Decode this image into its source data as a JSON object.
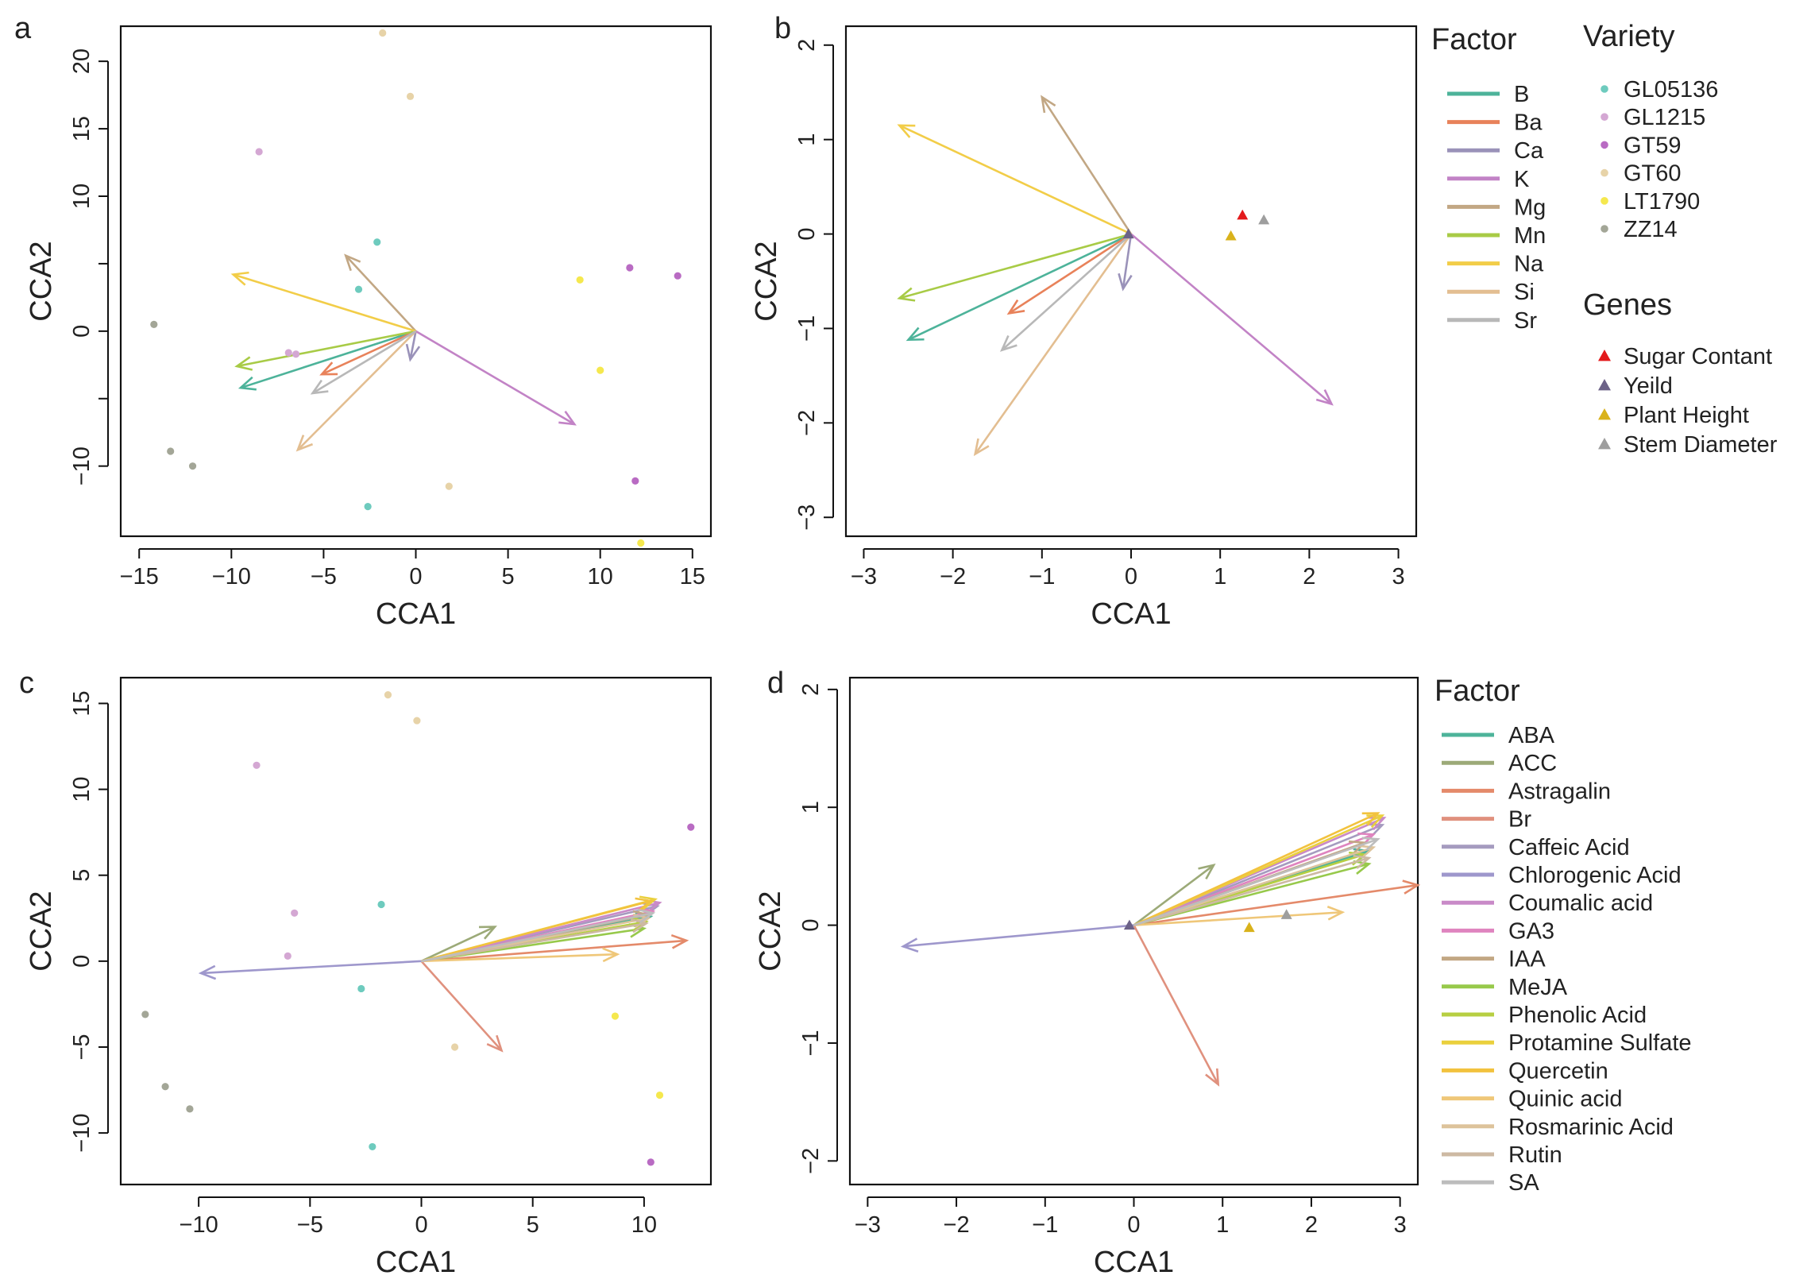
{
  "figure": {
    "panel_labels": [
      "a",
      "b",
      "c",
      "d"
    ]
  },
  "colors": {
    "B": "#4DB39A",
    "Ba": "#E8825A",
    "Ca": "#9A92B9",
    "K": "#C283C6",
    "Mg": "#C2A784",
    "Mn": "#A8CB46",
    "Na": "#F2CD48",
    "Si": "#E3BE91",
    "Sr": "#B8B8B8",
    "GL05136": "#6ECBBE",
    "GL1215": "#D4A7D3",
    "GT59": "#B96BC3",
    "GT60": "#E7D3A8",
    "LT1790": "#F5E84E",
    "ZZ14": "#A3A697",
    "Sugar Contant": "#E31A1C",
    "Yeild": "#6C6288",
    "Plant Height": "#D9B21B",
    "Stem Diameter": "#9E9E9E",
    "ABA": "#4DB39A",
    "ACC": "#9CAA78",
    "Astragalin": "#E48A6A",
    "Br": "#E0917E",
    "Caffeic Acid": "#A59BBF",
    "Chlorogenic Acid": "#9E97CC",
    "Coumalic acid": "#C98AC8",
    "GA3": "#DF84BF",
    "IAA": "#C2A784",
    "MeJA": "#97C94B",
    "Phenolic Acid": "#B7CF42",
    "Protamine Sulfate": "#EAD03D",
    "Quercetin": "#F2C23E",
    "Quinic acid": "#EFC779",
    "Rosmarinic Acid": "#DDC39B",
    "Rutin": "#CDB9A3",
    "SA": "#BDBDBD"
  },
  "chart_data": [
    {
      "id": "a",
      "type": "scatter",
      "xlabel": "CCA1",
      "ylabel": "CCA2",
      "xlim": [
        -16,
        16
      ],
      "ylim": [
        -15.2,
        22.6
      ],
      "xticks": [
        -15,
        -10,
        -5,
        0,
        5,
        10,
        15
      ],
      "yticks": [
        -10,
        0,
        10,
        20
      ],
      "yticks_major": [
        20,
        15,
        10,
        0,
        -10
      ],
      "points": [
        {
          "variety": "ZZ14",
          "x": -14.2,
          "y": 0.5
        },
        {
          "variety": "ZZ14",
          "x": -13.3,
          "y": -8.9
        },
        {
          "variety": "ZZ14",
          "x": -12.1,
          "y": -10.0
        },
        {
          "variety": "GL1215",
          "x": -8.5,
          "y": 13.3
        },
        {
          "variety": "GL1215",
          "x": -6.9,
          "y": -1.6
        },
        {
          "variety": "GL1215",
          "x": -6.5,
          "y": -1.7
        },
        {
          "variety": "GL05136",
          "x": -3.1,
          "y": 3.1
        },
        {
          "variety": "GL05136",
          "x": -2.1,
          "y": 6.6
        },
        {
          "variety": "GL05136",
          "x": -2.6,
          "y": -13.0
        },
        {
          "variety": "GT60",
          "x": -1.8,
          "y": 22.1
        },
        {
          "variety": "GT60",
          "x": -0.3,
          "y": 17.4
        },
        {
          "variety": "GT60",
          "x": 1.8,
          "y": -11.5
        },
        {
          "variety": "LT1790",
          "x": 8.9,
          "y": 3.8
        },
        {
          "variety": "LT1790",
          "x": 10.0,
          "y": -2.9
        },
        {
          "variety": "LT1790",
          "x": 12.2,
          "y": -15.7
        },
        {
          "variety": "GT59",
          "x": 11.6,
          "y": 4.7
        },
        {
          "variety": "GT59",
          "x": 14.2,
          "y": 4.1
        },
        {
          "variety": "GT59",
          "x": 11.9,
          "y": -11.1
        }
      ],
      "arrows": [
        {
          "factor": "B",
          "x": -9.5,
          "y": -4.2
        },
        {
          "factor": "Ba",
          "x": -5.1,
          "y": -3.2
        },
        {
          "factor": "Ca",
          "x": -0.3,
          "y": -2.1
        },
        {
          "factor": "K",
          "x": 8.6,
          "y": -6.9
        },
        {
          "factor": "Mg",
          "x": -3.8,
          "y": 5.6
        },
        {
          "factor": "Mn",
          "x": -9.7,
          "y": -2.6
        },
        {
          "factor": "Na",
          "x": -9.9,
          "y": 4.2
        },
        {
          "factor": "Si",
          "x": -6.4,
          "y": -8.8
        },
        {
          "factor": "Sr",
          "x": -5.6,
          "y": -4.6
        }
      ]
    },
    {
      "id": "b",
      "type": "scatter",
      "xlabel": "CCA1",
      "ylabel": "CCA2",
      "xlim": [
        -3.2,
        3.2
      ],
      "ylim": [
        -3.2,
        2.2
      ],
      "xticks": [
        -3,
        -2,
        -1,
        0,
        1,
        2,
        3
      ],
      "yticks": [
        -3,
        -2,
        -1,
        0,
        1,
        2
      ],
      "genes": [
        {
          "gene": "Sugar Contant",
          "x": 1.25,
          "y": 0.2
        },
        {
          "gene": "Yeild",
          "x": -0.03,
          "y": 0.0
        },
        {
          "gene": "Plant Height",
          "x": 1.12,
          "y": -0.02
        },
        {
          "gene": "Stem Diameter",
          "x": 1.49,
          "y": 0.15
        }
      ],
      "arrows": [
        {
          "factor": "B",
          "x": -2.5,
          "y": -1.12
        },
        {
          "factor": "Ba",
          "x": -1.37,
          "y": -0.84
        },
        {
          "factor": "Ca",
          "x": -0.09,
          "y": -0.58
        },
        {
          "factor": "K",
          "x": 2.25,
          "y": -1.8
        },
        {
          "factor": "Mg",
          "x": -1.0,
          "y": 1.45
        },
        {
          "factor": "Mn",
          "x": -2.6,
          "y": -0.68
        },
        {
          "factor": "Na",
          "x": -2.6,
          "y": 1.15
        },
        {
          "factor": "Si",
          "x": -1.75,
          "y": -2.33
        },
        {
          "factor": "Sr",
          "x": -1.45,
          "y": -1.23
        }
      ],
      "legend_factor_title": "Factor",
      "legend_factors": [
        "B",
        "Ba",
        "Ca",
        "K",
        "Mg",
        "Mn",
        "Na",
        "Si",
        "Sr"
      ],
      "legend_variety_title": "Variety",
      "legend_varieties": [
        "GL05136",
        "GL1215",
        "GT59",
        "GT60",
        "LT1790",
        "ZZ14"
      ],
      "legend_genes_title": "Genes",
      "legend_genes": [
        "Sugar Contant",
        "Yeild",
        "Plant Height",
        "Stem Diameter"
      ]
    },
    {
      "id": "c",
      "type": "scatter",
      "xlabel": "CCA1",
      "ylabel": "CCA2",
      "xlim": [
        -13.5,
        13
      ],
      "ylim": [
        -13,
        16.5
      ],
      "xticks": [
        -10,
        -5,
        0,
        5,
        10
      ],
      "yticks": [
        -10,
        -5,
        0,
        5,
        10,
        15
      ],
      "points": [
        {
          "variety": "ZZ14",
          "x": -12.4,
          "y": -3.1
        },
        {
          "variety": "ZZ14",
          "x": -11.5,
          "y": -7.3
        },
        {
          "variety": "ZZ14",
          "x": -10.4,
          "y": -8.6
        },
        {
          "variety": "GL1215",
          "x": -7.4,
          "y": 11.4
        },
        {
          "variety": "GL1215",
          "x": -5.7,
          "y": 2.8
        },
        {
          "variety": "GL1215",
          "x": -6.0,
          "y": 0.3
        },
        {
          "variety": "GL05136",
          "x": -1.8,
          "y": 3.3
        },
        {
          "variety": "GL05136",
          "x": -2.7,
          "y": -1.6
        },
        {
          "variety": "GL05136",
          "x": -2.2,
          "y": -10.8
        },
        {
          "variety": "GT60",
          "x": -1.5,
          "y": 15.5
        },
        {
          "variety": "GT60",
          "x": -0.2,
          "y": 14.0
        },
        {
          "variety": "GT60",
          "x": 1.5,
          "y": -5.0
        },
        {
          "variety": "LT1790",
          "x": 8.7,
          "y": -3.2
        },
        {
          "variety": "LT1790",
          "x": 10.7,
          "y": -7.8
        },
        {
          "variety": "GT59",
          "x": 12.1,
          "y": 7.8
        },
        {
          "variety": "GT59",
          "x": 10.3,
          "y": -11.7
        }
      ],
      "arrows": [
        {
          "factor": "ABA",
          "x": 10.3,
          "y": 2.6
        },
        {
          "factor": "ACC",
          "x": 3.3,
          "y": 2.0
        },
        {
          "factor": "Astragalin",
          "x": 11.9,
          "y": 1.2
        },
        {
          "factor": "Br",
          "x": 3.6,
          "y": -5.2
        },
        {
          "factor": "Caffeic Acid",
          "x": 10.6,
          "y": 3.2
        },
        {
          "factor": "Chlorogenic Acid",
          "x": -9.9,
          "y": -0.7
        },
        {
          "factor": "Coumalic acid",
          "x": 10.7,
          "y": 3.4
        },
        {
          "factor": "GA3",
          "x": 10.4,
          "y": 2.9
        },
        {
          "factor": "IAA",
          "x": 10.2,
          "y": 2.7
        },
        {
          "factor": "MeJA",
          "x": 10.0,
          "y": 1.9
        },
        {
          "factor": "Phenolic Acid",
          "x": 10.1,
          "y": 2.3
        },
        {
          "factor": "Protamine Sulfate",
          "x": 10.5,
          "y": 3.6
        },
        {
          "factor": "Quercetin",
          "x": 10.3,
          "y": 3.5
        },
        {
          "factor": "Quinic acid",
          "x": 8.8,
          "y": 0.4
        },
        {
          "factor": "Rosmarinic Acid",
          "x": 10.2,
          "y": 2.5
        },
        {
          "factor": "Rutin",
          "x": 10.1,
          "y": 2.2
        },
        {
          "factor": "SA",
          "x": 10.4,
          "y": 2.8
        }
      ]
    },
    {
      "id": "d",
      "type": "scatter",
      "xlabel": "CCA1",
      "ylabel": "CCA2",
      "xlim": [
        -3.2,
        3.2
      ],
      "ylim": [
        -2.2,
        2.1
      ],
      "xticks": [
        -3,
        -2,
        -1,
        0,
        1,
        2,
        3
      ],
      "yticks": [
        -2,
        -1,
        0,
        1,
        2
      ],
      "genes": [
        {
          "gene": "Yeild",
          "x": -0.05,
          "y": 0.0
        },
        {
          "gene": "Plant Height",
          "x": 1.3,
          "y": -0.02
        },
        {
          "gene": "Stem Diameter",
          "x": 1.72,
          "y": 0.09
        }
      ],
      "arrows": [
        {
          "factor": "ABA",
          "x": 2.65,
          "y": 0.63
        },
        {
          "factor": "ACC",
          "x": 0.9,
          "y": 0.51
        },
        {
          "factor": "Astragalin",
          "x": 3.2,
          "y": 0.34
        },
        {
          "factor": "Br",
          "x": 0.95,
          "y": -1.35
        },
        {
          "factor": "Caffeic Acid",
          "x": 2.8,
          "y": 0.85
        },
        {
          "factor": "Chlorogenic Acid",
          "x": -2.6,
          "y": -0.18
        },
        {
          "factor": "Coumalic acid",
          "x": 2.82,
          "y": 0.91
        },
        {
          "factor": "GA3",
          "x": 2.7,
          "y": 0.77
        },
        {
          "factor": "IAA",
          "x": 2.6,
          "y": 0.7
        },
        {
          "factor": "MeJA",
          "x": 2.65,
          "y": 0.52
        },
        {
          "factor": "Phenolic Acid",
          "x": 2.6,
          "y": 0.6
        },
        {
          "factor": "Protamine Sulfate",
          "x": 2.8,
          "y": 0.93
        },
        {
          "factor": "Quercetin",
          "x": 2.75,
          "y": 0.95
        },
        {
          "factor": "Quinic acid",
          "x": 2.35,
          "y": 0.11
        },
        {
          "factor": "Rosmarinic Acid",
          "x": 2.7,
          "y": 0.66
        },
        {
          "factor": "Rutin",
          "x": 2.65,
          "y": 0.57
        },
        {
          "factor": "SA",
          "x": 2.75,
          "y": 0.73
        }
      ],
      "legend_factor_title": "Factor",
      "legend_factors": [
        "ABA",
        "ACC",
        "Astragalin",
        "Br",
        "Caffeic Acid",
        "Chlorogenic Acid",
        "Coumalic acid",
        "GA3",
        "IAA",
        "MeJA",
        "Phenolic Acid",
        "Protamine Sulfate",
        "Quercetin",
        "Quinic acid",
        "Rosmarinic Acid",
        "Rutin",
        "SA"
      ]
    }
  ]
}
